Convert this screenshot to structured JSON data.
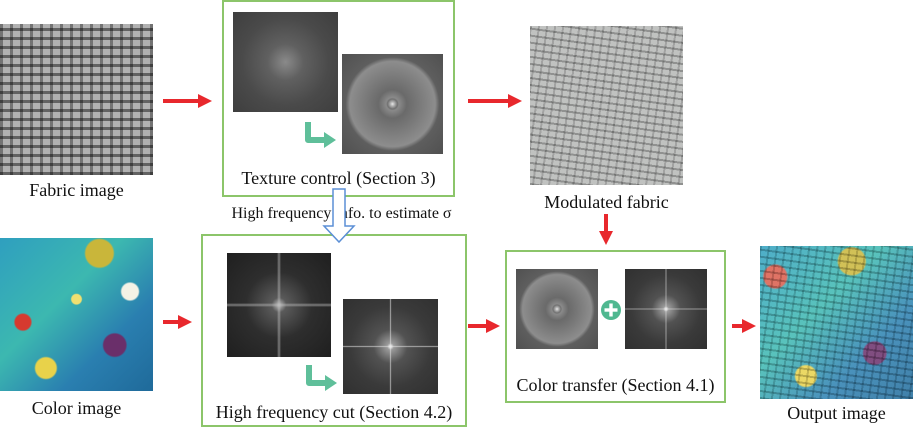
{
  "labels": {
    "fabric_image": "Fabric image",
    "color_image": "Color image",
    "texture_control": "Texture control (Section 3)",
    "high_freq_info": "High frequency info. to estimate σ",
    "modulated_fabric": "Modulated fabric",
    "high_freq_cut": "High frequency cut (Section 4.2)",
    "color_transfer": "Color transfer (Section 4.1)",
    "output_image": "Output image"
  },
  "colors": {
    "box_border": "#8cc56a",
    "arrow_red": "#e8282d",
    "turn_arrow": "#5fbf9a",
    "plus_circle": "#4fb890"
  }
}
